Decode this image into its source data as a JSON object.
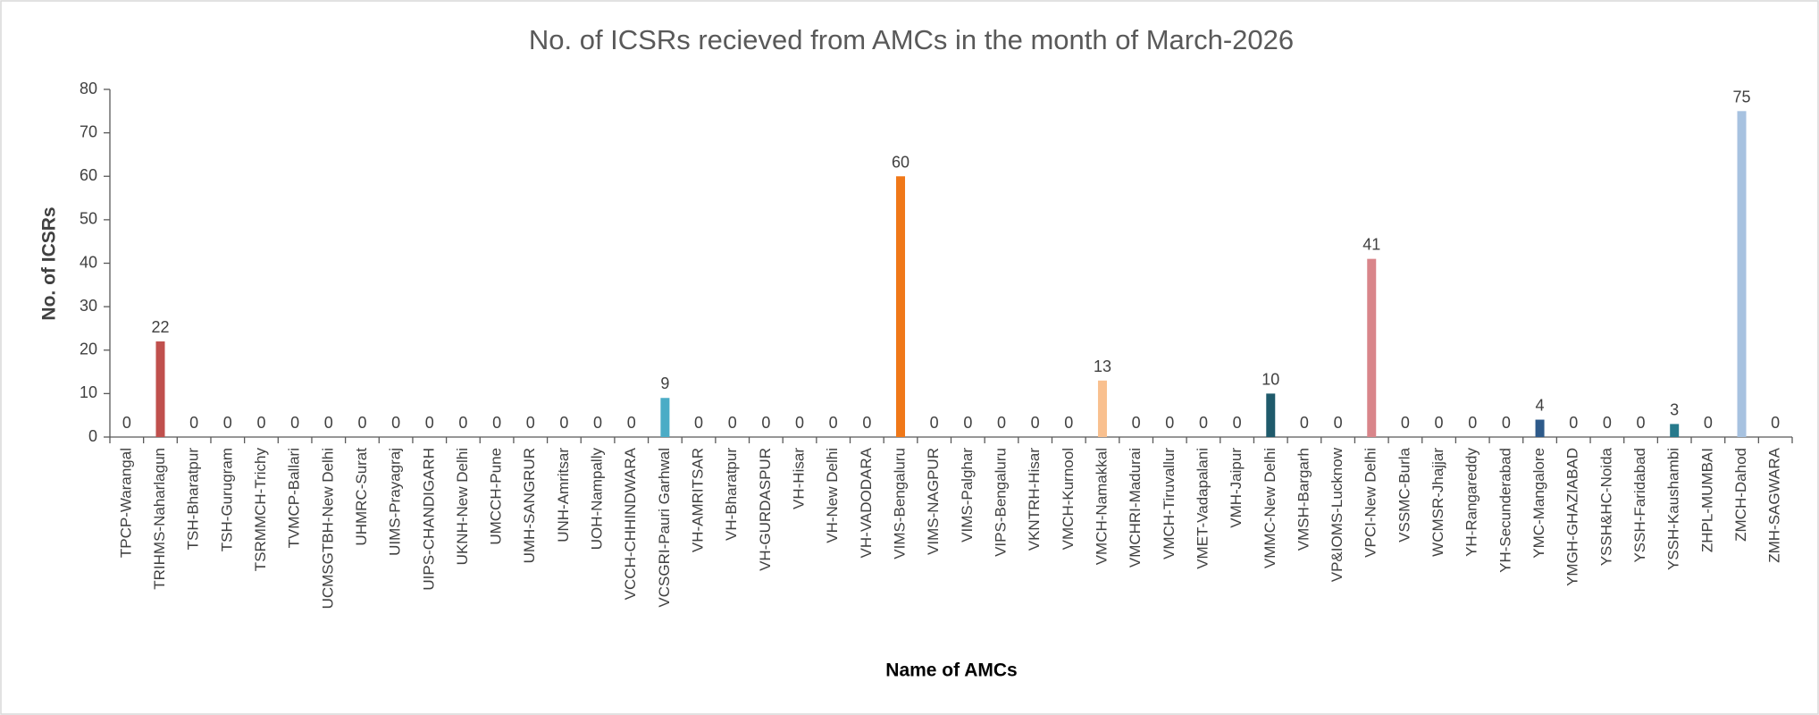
{
  "chart_data": {
    "type": "bar",
    "title": "No. of ICSRs recieved from AMCs in the month of  March-2026",
    "x_label": "Name  of AMCs",
    "y_label": "No. of ICSRs",
    "categories": [
      "TPCP-Warangal",
      "TRIHMS-Naharlagun",
      "TSH-Bharatpur",
      "TSH-Gurugram",
      "TSRMMCH-Trichy",
      "TVMCP-Ballari",
      "UCMSGTBH-New Delhi",
      "UHMRC-Surat",
      "UIMS-Prayagraj",
      "UIPS-CHANDIGARH",
      "UKNH-New Delhi",
      "UMCCH-Pune",
      "UMH-SANGRUR",
      "UNH-Amritsar",
      "UOH-Nampally",
      "VCCH-CHHINDWARA",
      "VCSGRI-Pauri Garhwal",
      "VH-AMRITSAR",
      "VH-Bharatpur",
      "VH-GURDASPUR",
      "VH-Hisar",
      "VH-New Delhi",
      "VH-VADODARA",
      "VIMS-Bengaluru",
      "VIMS-NAGPUR",
      "VIMS-Palghar",
      "VIPS-Bengaluru",
      "VKNTRH-Hisar",
      "VMCH-Kurnool",
      "VMCH-Namakkal",
      "VMCHRI-Madurai",
      "VMCH-Tiruvallur",
      "VMET-Vadapalani",
      "VMH-Jaipur",
      "VMMC-New Delhi",
      "VMSH-Bargarh",
      "VP&IOMS-Lucknow",
      "VPCI-New Delhi",
      "VSSMC-Burla",
      "WCMSR-Jhajjar",
      "YH-Rangareddy",
      "YH-Secunderabad",
      "YMC-Mangalore",
      "YMGH-GHAZIABAD",
      "YSSH&HC-Noida",
      "YSSH-Faridabad",
      "YSSH-Kaushambi",
      "ZHPL-MUMBAI",
      "ZMCH-Dahod",
      "ZMH-SAGWARA"
    ],
    "values": [
      0,
      22,
      0,
      0,
      0,
      0,
      0,
      0,
      0,
      0,
      0,
      0,
      0,
      0,
      0,
      0,
      9,
      0,
      0,
      0,
      0,
      0,
      0,
      60,
      0,
      0,
      0,
      0,
      0,
      13,
      0,
      0,
      0,
      0,
      10,
      0,
      0,
      41,
      0,
      0,
      0,
      0,
      4,
      0,
      0,
      0,
      3,
      0,
      75,
      0
    ],
    "colors": [
      "#4472c4",
      "#c0504d",
      "#9bbb59",
      "#8064a2",
      "#4bacc6",
      "#f79646",
      "#2c4d75",
      "#772c2a",
      "#5f7530",
      "#4d3b62",
      "#276a7c",
      "#b65708",
      "#729aca",
      "#cd7371",
      "#afc97a",
      "#9983b5",
      "#4bacc6",
      "#f9ab6b",
      "#3a679c",
      "#9f3b38",
      "#7f9d40",
      "#664f83",
      "#358ea6",
      "#f07818",
      "#a4bde0",
      "#d9a3a1",
      "#c6d9a7",
      "#b9a9cd",
      "#9bcbd9",
      "#f9c08f",
      "#254061",
      "#632523",
      "#4f6228",
      "#3f3151",
      "#1f5a6b",
      "#984807",
      "#8eb4e3",
      "#d9858a",
      "#d7e4bc",
      "#ccc1da",
      "#b7dee8",
      "#fcd5b5",
      "#2e5a8a",
      "#953735",
      "#77933c",
      "#604a7b",
      "#277a8c",
      "#e46c0a",
      "#a7c2e0",
      "#e6b9b8"
    ],
    "ylim": [
      0,
      80
    ],
    "yticks": [
      0,
      10,
      20,
      30,
      40,
      50,
      60,
      70,
      80
    ],
    "grid": false
  }
}
